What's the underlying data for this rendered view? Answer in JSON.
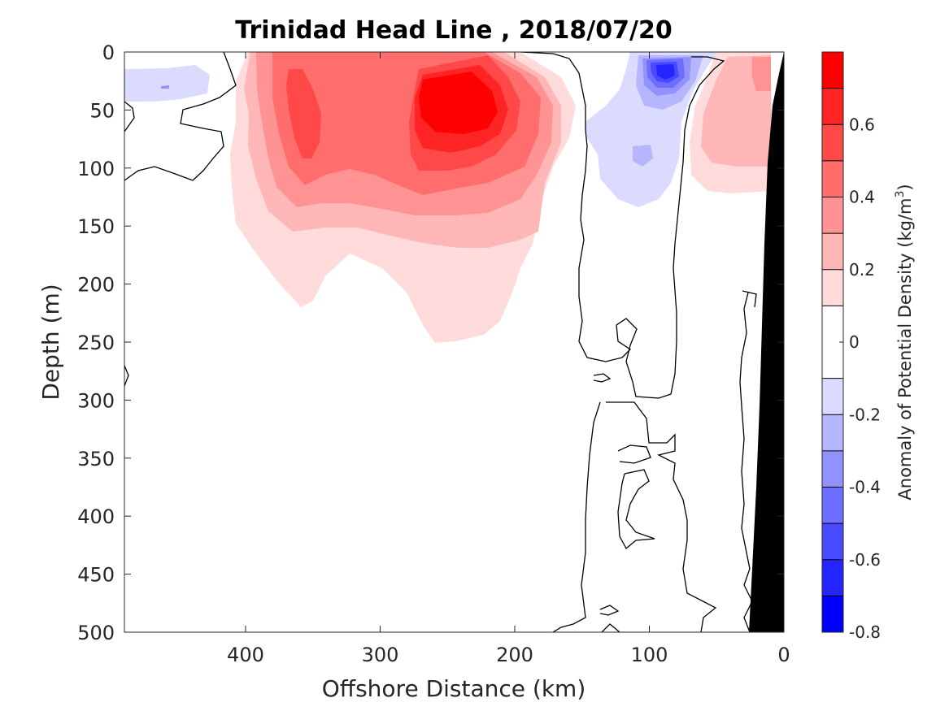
{
  "chart_data": {
    "type": "heatmap",
    "subtype": "filled-contour-section",
    "title": "Trinidad Head Line , 2018/07/20",
    "xlabel": "Offshore Distance (km)",
    "ylabel": "Depth (m)",
    "colorbar_label": "Anomaly of Potential Density (kg/m",
    "colorbar_label_superscript": "3",
    "colorbar_label_suffix": ")",
    "x_reversed": true,
    "xlim": [
      490,
      0
    ],
    "ylim": [
      0,
      500
    ],
    "y_reversed": true,
    "x_ticks": [
      400,
      300,
      200,
      100,
      0
    ],
    "x_tick_labels": [
      "400",
      "300",
      "200",
      "100",
      "0"
    ],
    "y_ticks": [
      0,
      50,
      100,
      150,
      200,
      250,
      300,
      350,
      400,
      450,
      500
    ],
    "y_tick_labels": [
      "0",
      "50",
      "100",
      "150",
      "200",
      "250",
      "300",
      "350",
      "400",
      "450",
      "500"
    ],
    "colorbar": {
      "range": [
        -0.8,
        0.8
      ],
      "ticks": [
        -0.8,
        -0.6,
        -0.4,
        -0.2,
        0,
        0.2,
        0.4,
        0.6
      ],
      "tick_labels": [
        "-0.8",
        "-0.6",
        "-0.4",
        "-0.2",
        "0",
        "0.2",
        "0.4",
        "0.6"
      ],
      "levels": [
        -0.8,
        -0.7,
        -0.6,
        -0.5,
        -0.4,
        -0.3,
        -0.2,
        -0.1,
        0.1,
        0.2,
        0.3,
        0.4,
        0.5,
        0.6,
        0.7,
        0.8
      ],
      "colors": [
        "#0000ff",
        "#2424ff",
        "#4949ff",
        "#6d6dff",
        "#9292ff",
        "#b6b6ff",
        "#dbdbff",
        "#ffffff",
        "#ffdbdb",
        "#ffb6b6",
        "#ff9292",
        "#ff6d6d",
        "#ff4949",
        "#ff2424",
        "#ff0000"
      ]
    },
    "features": [
      {
        "kind": "positive-anomaly",
        "center_km": 245,
        "center_depth_m": 40,
        "peak_value": 0.8
      },
      {
        "kind": "positive-anomaly",
        "center_km": 355,
        "center_depth_m": 60,
        "peak_value": 0.5
      },
      {
        "kind": "positive-anomaly",
        "center_km": 20,
        "center_depth_m": 25,
        "peak_value": 0.4
      },
      {
        "kind": "negative-anomaly",
        "center_km": 88,
        "center_depth_m": 18,
        "peak_value": -0.7
      },
      {
        "kind": "negative-anomaly",
        "center_km": 465,
        "center_depth_m": 30,
        "peak_value": -0.1
      },
      {
        "kind": "land-bathymetry",
        "color": "#000000"
      }
    ]
  }
}
